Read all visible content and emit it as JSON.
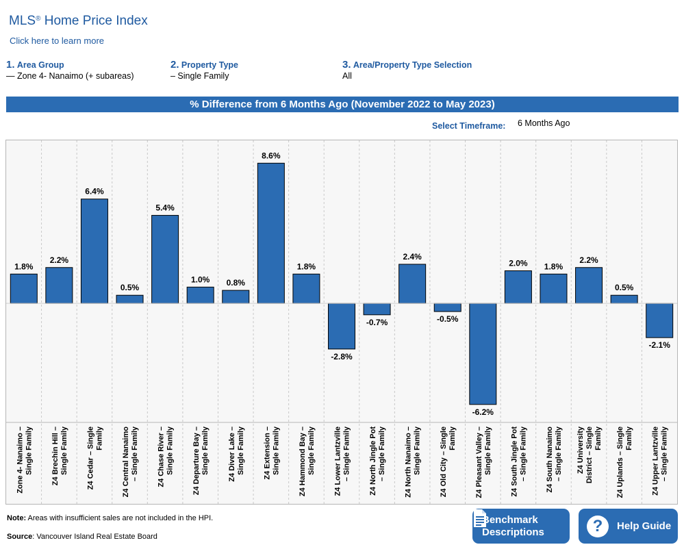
{
  "header": {
    "title": "MLS",
    "title_mark": "®",
    "title_rest": " Home Price Index",
    "learn_more": "Click here to learn more"
  },
  "steps": [
    {
      "num": "1.",
      "label": "Area Group",
      "value": "— Zone 4- Nanaimo (+ subareas)"
    },
    {
      "num": "2.",
      "label": "Property Type",
      "value": "– Single Family"
    },
    {
      "num": "3.",
      "label": "Area/Property Type Selection",
      "value": "All"
    }
  ],
  "banner": "% Difference from 6 Months Ago (November 2022 to May 2023)",
  "timeframe": {
    "label": "Select Timeframe:",
    "value": "6 Months Ago"
  },
  "chart_data": {
    "type": "bar",
    "title": "% Difference from 6 Months Ago (November 2022 to May 2023)",
    "categories": [
      "Zone 4- Nanaimo – Single Family",
      "Z4 Brechin Hill – Single Family",
      "Z4 Cedar – Single Family",
      "Z4 Central Nanaimo – Single Family",
      "Z4 Chase River – Single Family",
      "Z4 Departure Bay – Single Family",
      "Z4 Diver Lake – Single Family",
      "Z4 Extension – Single Family",
      "Z4 Hammond Bay – Single Family",
      "Z4 Lower Lantzville – Single Family",
      "Z4 North Jingle Pot – Single Family",
      "Z4 North Nanaimo – Single Family",
      "Z4 Old City – Single Family",
      "Z4 Pleasant Valley – Single Family",
      "Z4 South Jingle Pot – Single Family",
      "Z4 South Nanaimo – Single Family",
      "Z4 University District – Single Family",
      "Z4 Uplands – Single Family",
      "Z4 Upper Lantzville – Single Family"
    ],
    "category_lines": [
      [
        "Zone 4- Nanaimo –",
        "Single Family"
      ],
      [
        "Z4 Brechin Hill –",
        "Single Family"
      ],
      [
        "Z4 Cedar – Single",
        "Family"
      ],
      [
        "Z4 Central Nanaimo",
        "– Single Family"
      ],
      [
        "Z4 Chase River –",
        "Single Family"
      ],
      [
        "Z4 Departure Bay –",
        "Single Family"
      ],
      [
        "Z4 Diver Lake –",
        "Single Family"
      ],
      [
        "Z4 Extension –",
        "Single Family"
      ],
      [
        "Z4 Hammond Bay –",
        "Single Family"
      ],
      [
        "Z4 Lower Lantzville",
        "– Single Family"
      ],
      [
        "Z4 North Jingle Pot",
        "– Single Family"
      ],
      [
        "Z4 North Nanaimo –",
        "Single Family"
      ],
      [
        "Z4 Old City – Single",
        "Family"
      ],
      [
        "Z4 Pleasant Valley –",
        "Single Family"
      ],
      [
        "Z4 South Jingle Pot",
        "– Single Family"
      ],
      [
        "Z4 South Nanaimo",
        "– Single Family"
      ],
      [
        "Z4 University",
        "District – Single",
        "Family"
      ],
      [
        "Z4 Uplands – Single",
        "Family"
      ],
      [
        "Z4 Upper Lantzville",
        "– Single Family"
      ]
    ],
    "values": [
      1.8,
      2.2,
      6.4,
      0.5,
      5.4,
      1.0,
      0.8,
      8.6,
      1.8,
      -2.8,
      -0.7,
      2.4,
      -0.5,
      -6.2,
      2.0,
      1.8,
      2.2,
      0.5,
      -2.1
    ],
    "data_labels": [
      "1.8%",
      "2.2%",
      "6.4%",
      "0.5%",
      "5.4%",
      "1.0%",
      "0.8%",
      "8.6%",
      "1.8%",
      "-2.8%",
      "-0.7%",
      "2.4%",
      "-0.5%",
      "-6.2%",
      "2.0%",
      "1.8%",
      "2.2%",
      "0.5%",
      "-2.1%"
    ],
    "ylim": [
      -7.3,
      10.0
    ],
    "grid": "vertical dashed separators",
    "bar_color": "#2b6cb3"
  },
  "footer": {
    "note_label": "Note:",
    "note_text": " Areas with insufficient sales are not included in the HPI.",
    "source_label": "Source",
    "source_text": ": Vancouver Island Real Estate Board"
  },
  "buttons": {
    "benchmark_line1": "Benchmark",
    "benchmark_line2": "Descriptions",
    "help": "Help Guide",
    "benchmark_icon": "document-icon",
    "help_icon": "question-icon"
  }
}
